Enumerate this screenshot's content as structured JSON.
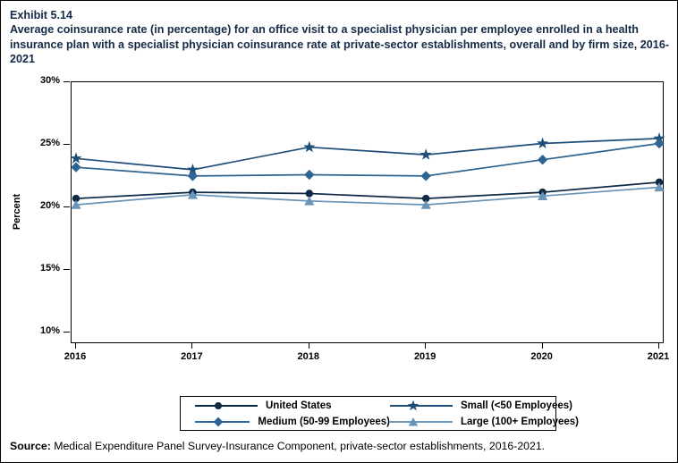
{
  "page": {
    "exhibit_label": "Exhibit 5.14",
    "title": "Average coinsurance rate (in percentage) for an office visit to a specialist physician per employee enrolled in a health insurance plan with a specialist physician coinsurance rate at private-sector establishments, overall and by firm size, 2016-2021",
    "source_label": "Source:",
    "source_text": " Medical Expenditure Panel Survey-Insurance Component, private-sector establishments, 2016-2021."
  },
  "chart_data": {
    "type": "line",
    "title": "Average coinsurance rate (in percentage) for an office visit to a specialist physician per employee enrolled in a health insurance plan with a specialist physician coinsurance rate at private-sector establishments, overall and by firm size, 2016-2021",
    "xlabel": "",
    "ylabel": "Percent",
    "x": [
      2016,
      2017,
      2018,
      2019,
      2020,
      2021
    ],
    "ylim": [
      9,
      30
    ],
    "y_ticks": [
      30,
      25,
      20,
      15,
      10
    ],
    "y_tick_labels": [
      "30%",
      "25%",
      "20%",
      "15%",
      "10%"
    ],
    "grid": false,
    "legend_position": "bottom-box-2col",
    "series": [
      {
        "name": "United States",
        "marker": "circle",
        "color": "#0e2a44",
        "values": [
          20.7,
          21.2,
          21.1,
          20.7,
          21.2,
          22.0
        ]
      },
      {
        "name": "Small (<50 Employees)",
        "marker": "star",
        "color": "#1f4e79",
        "values": [
          23.9,
          23.0,
          24.8,
          24.2,
          25.1,
          25.5
        ]
      },
      {
        "name": "Medium (50-99 Employees)",
        "marker": "diamond",
        "color": "#2f6590",
        "values": [
          23.2,
          22.5,
          22.6,
          22.5,
          23.8,
          25.1
        ]
      },
      {
        "name": "Large (100+ Employees)",
        "marker": "triangle",
        "color": "#6a94b8",
        "values": [
          20.2,
          21.0,
          20.5,
          20.2,
          20.9,
          21.6
        ]
      }
    ]
  }
}
